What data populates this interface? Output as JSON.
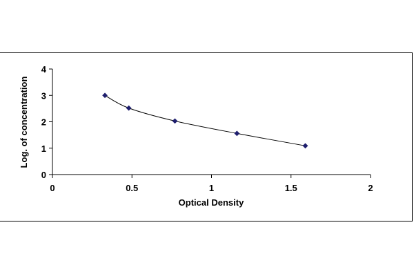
{
  "chart_data": {
    "type": "scatter",
    "title": "",
    "xlabel": "Optical Density",
    "ylabel": "Log. of concentration",
    "xlim": [
      0,
      2
    ],
    "ylim": [
      0,
      4
    ],
    "xticks": [
      "0",
      "0.5",
      "1",
      "1.5",
      "2"
    ],
    "yticks": [
      "0",
      "1",
      "2",
      "3",
      "4"
    ],
    "grid": false,
    "legend": "none",
    "marker_color": "#1f1f6e",
    "line_color": "#000000",
    "points": [
      {
        "x": 0.33,
        "y": 3.0
      },
      {
        "x": 0.48,
        "y": 2.52
      },
      {
        "x": 0.77,
        "y": 2.03
      },
      {
        "x": 1.16,
        "y": 1.56
      },
      {
        "x": 1.59,
        "y": 1.09
      }
    ]
  }
}
